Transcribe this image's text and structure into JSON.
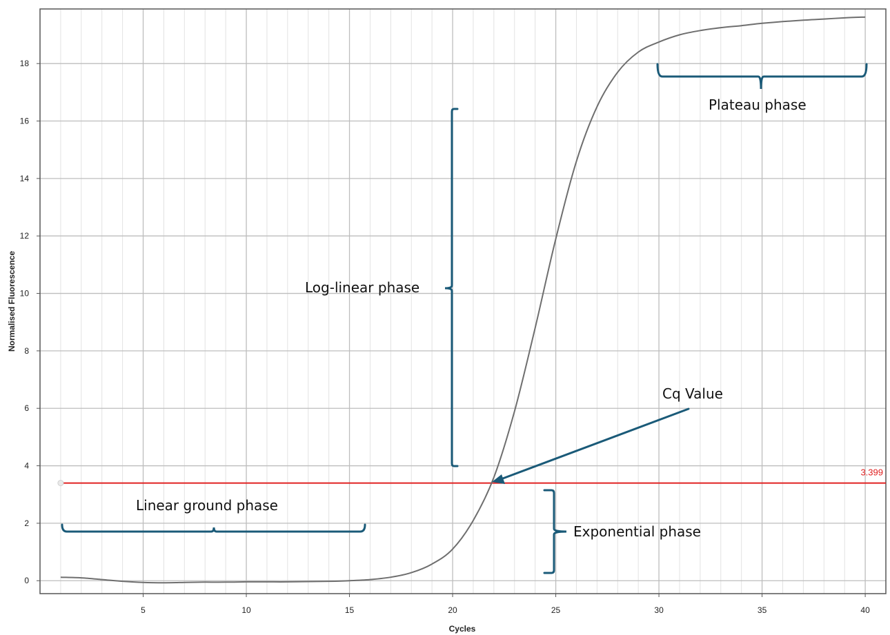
{
  "chart_data": {
    "type": "line",
    "title": "",
    "xlabel": "Cycles",
    "ylabel": "Normalised Fluorescence",
    "xlim": [
      0,
      41
    ],
    "ylim": [
      -0.45,
      19.9
    ],
    "x_ticks": [
      5,
      10,
      15,
      20,
      25,
      30,
      35,
      40
    ],
    "y_ticks": [
      0,
      2,
      4,
      6,
      8,
      10,
      12,
      14,
      16,
      18
    ],
    "grid": true,
    "legend": "none",
    "series": [
      {
        "color": "#6e6e6e",
        "x": [
          1,
          2,
          3,
          4,
          5,
          6,
          7,
          8,
          9,
          10,
          11,
          12,
          13,
          14,
          15,
          16,
          17,
          18,
          19,
          20,
          21,
          22,
          23,
          24,
          25,
          26,
          27,
          28,
          29,
          30,
          31,
          32,
          33,
          34,
          35,
          36,
          37,
          38,
          39,
          40
        ],
        "values": [
          0.12,
          0.1,
          0.04,
          -0.02,
          -0.06,
          -0.07,
          -0.06,
          -0.05,
          -0.05,
          -0.04,
          -0.04,
          -0.04,
          -0.03,
          -0.02,
          0.0,
          0.04,
          0.12,
          0.28,
          0.58,
          1.1,
          2.1,
          3.6,
          5.9,
          8.8,
          11.9,
          14.6,
          16.5,
          17.7,
          18.4,
          18.75,
          19.0,
          19.15,
          19.25,
          19.32,
          19.4,
          19.46,
          19.51,
          19.55,
          19.59,
          19.62
        ]
      }
    ],
    "threshold": {
      "value": 3.399,
      "label": "3.399",
      "color": "#e02020"
    },
    "annotation_color": "#1a5a78",
    "annotations": [
      {
        "id": "linear-ground",
        "text": "Linear ground phase"
      },
      {
        "id": "exponential",
        "text": "Exponential phase"
      },
      {
        "id": "log-linear",
        "text": "Log-linear phase"
      },
      {
        "id": "plateau",
        "text": "Plateau phase"
      },
      {
        "id": "cq",
        "text": "Cq Value"
      }
    ]
  }
}
